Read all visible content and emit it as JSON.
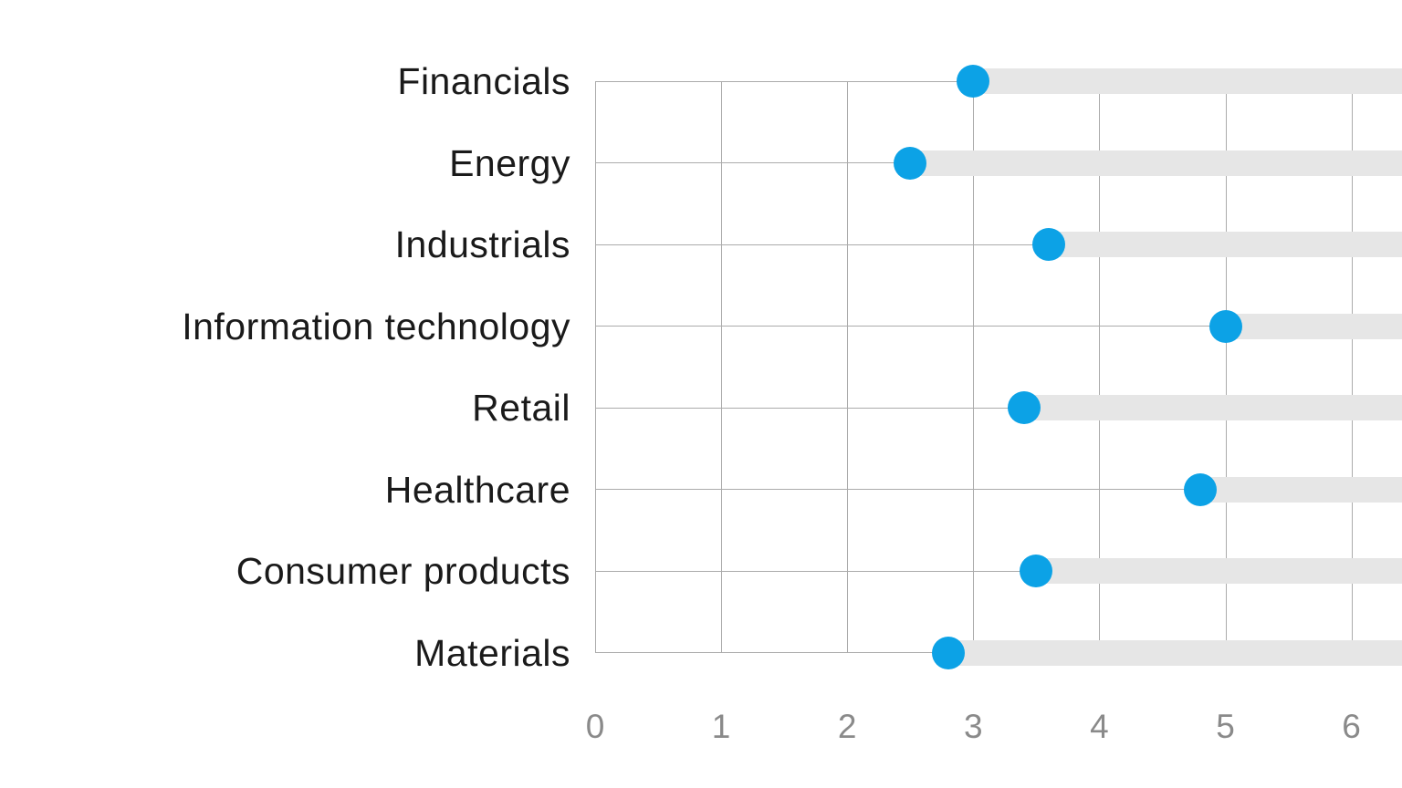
{
  "chart_data": {
    "type": "scatter",
    "variant": "horizontal-dot-plot-with-track-bars",
    "title": "",
    "xlabel": "",
    "ylabel": "",
    "categories": [
      "Financials",
      "Energy",
      "Industrials",
      "Information technology",
      "Retail",
      "Healthcare",
      "Consumer products",
      "Materials"
    ],
    "values": [
      3.0,
      2.5,
      3.6,
      5.0,
      3.4,
      4.8,
      3.5,
      2.8
    ],
    "x_ticks": [
      0,
      1,
      2,
      3,
      4,
      5,
      6
    ],
    "x_tick_labels": [
      "0",
      "1",
      "2",
      "3",
      "4",
      "5",
      "6"
    ],
    "xlim": [
      0,
      6.4
    ],
    "grid": "vertical gridlines at each tick; thin horizontal guide line per category from axis to dot; gray track bar from dot to right edge",
    "legend": "none",
    "colors": {
      "dot": "#0ca2e6",
      "track_bar": "#e6e6e6",
      "gridline": "#ababab",
      "category_label": "#1a1a1a",
      "tick_label": "#8a8a8a",
      "background": "#ffffff"
    }
  }
}
